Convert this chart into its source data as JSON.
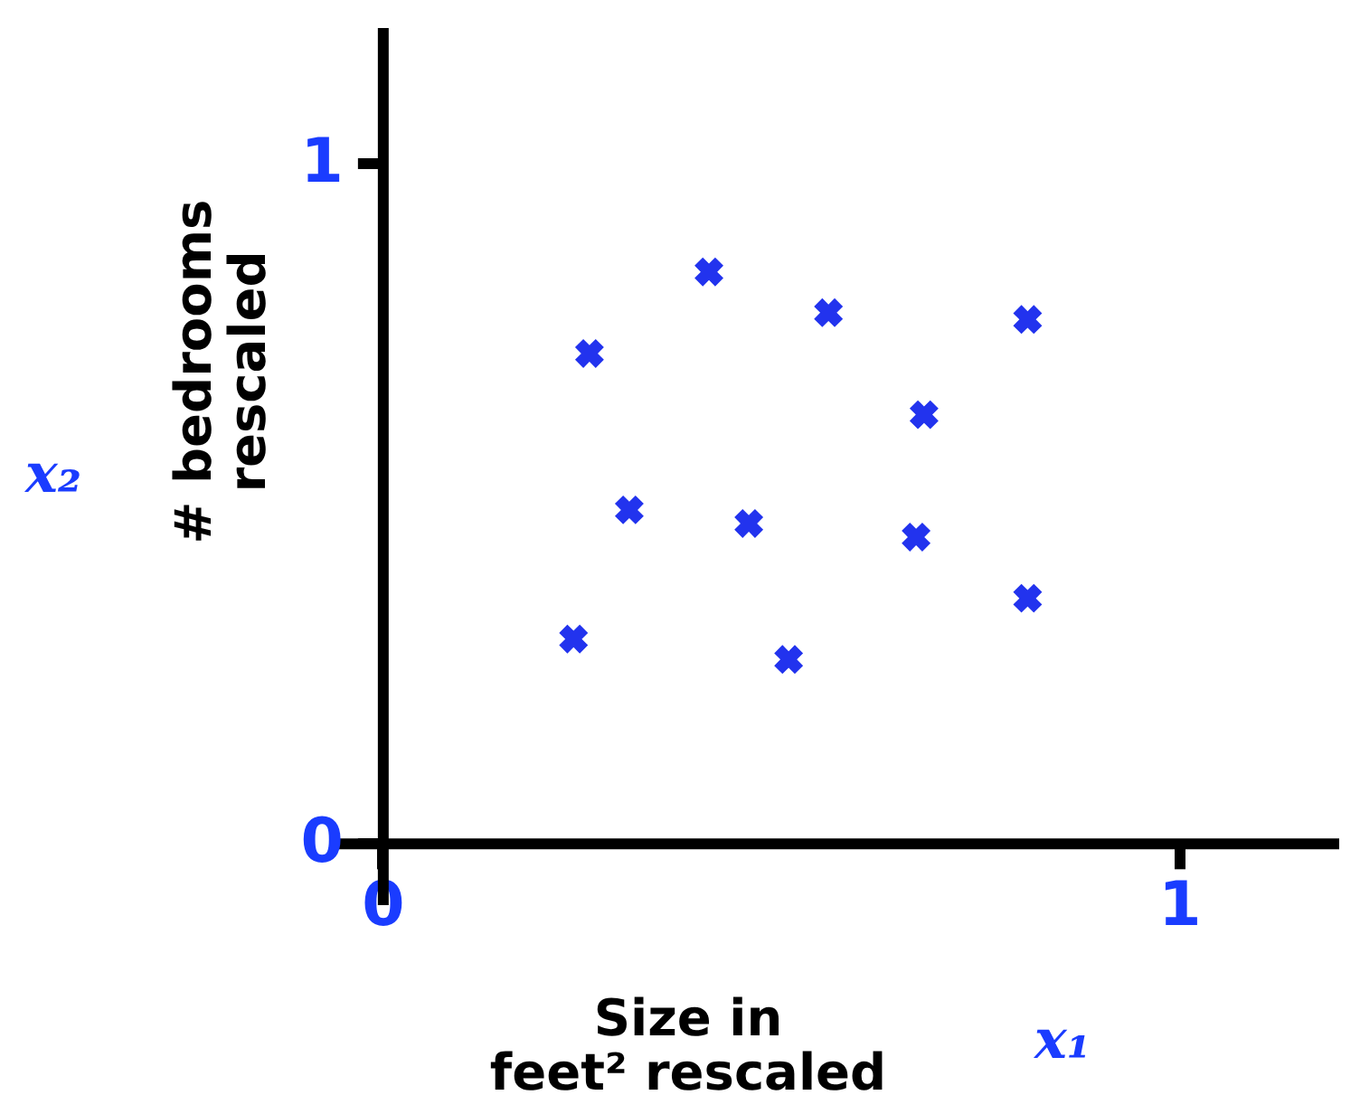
{
  "chart_data": {
    "type": "scatter",
    "xlabel": "Size in feet² rescaled",
    "ylabel": "# bedrooms rescaled",
    "annotations": [
      "x₁",
      "x₂"
    ],
    "x": [
      0.26,
      0.41,
      0.56,
      0.81,
      0.68,
      0.31,
      0.46,
      0.67,
      0.81,
      0.24,
      0.51
    ],
    "series": [
      {
        "color": "#2233ee",
        "values": [
          0.72,
          0.84,
          0.78,
          0.77,
          0.63,
          0.49,
          0.47,
          0.45,
          0.36,
          0.3,
          0.27
        ]
      }
    ],
    "xlim": [
      -0.06,
      1.2
    ],
    "ylim": [
      -0.09,
      1.2
    ],
    "xticks": [
      0,
      1
    ],
    "yticks": [
      0,
      1
    ],
    "marker": "cross",
    "grid": false
  }
}
